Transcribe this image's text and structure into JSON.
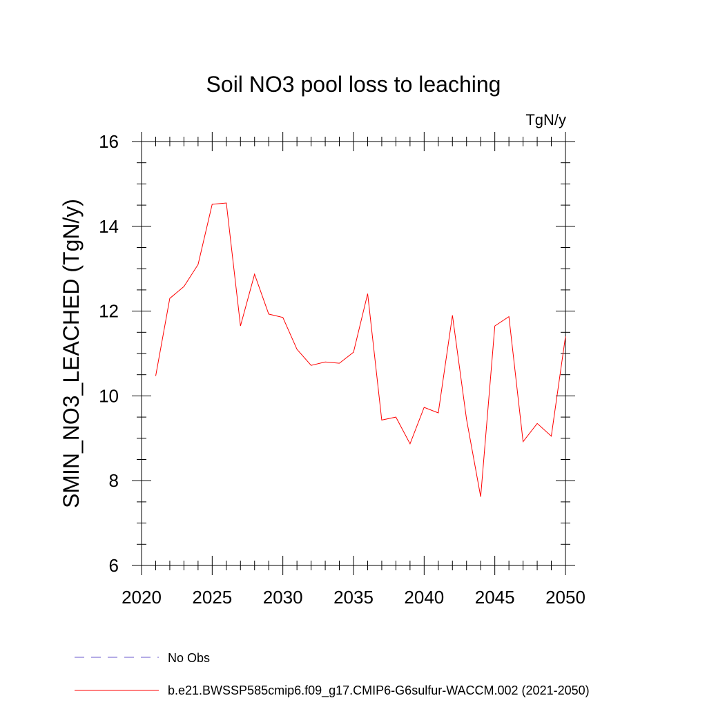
{
  "chart_data": {
    "type": "line",
    "title": "Soil NO3 pool loss to leaching",
    "units": "TgN/y",
    "ylabel": "SMIN_NO3_LEACHED  (TgN/y)",
    "xlabel": "",
    "xlim": [
      2020,
      2050
    ],
    "ylim": [
      6,
      16
    ],
    "x_ticks": [
      "2020",
      "2025",
      "2030",
      "2035",
      "2040",
      "2045",
      "2050"
    ],
    "y_ticks": [
      "6",
      "8",
      "10",
      "12",
      "14",
      "16"
    ],
    "grid": false,
    "legend_position": "bottom",
    "legend": [
      {
        "label": "No Obs",
        "color": "#6a5acd",
        "style": "dashed"
      },
      {
        "label": "b.e21.BWSSP585cmip6.f09_g17.CMIP6-G6sulfur-WACCM.002 (2021-2050)",
        "color": "#ff0000",
        "style": "solid"
      }
    ],
    "series": [
      {
        "name": "b.e21.BWSSP585cmip6.f09_g17.CMIP6-G6sulfur-WACCM.002 (2021-2050)",
        "color": "#ff0000",
        "x": [
          2021,
          2022,
          2023,
          2024,
          2025,
          2026,
          2027,
          2028,
          2029,
          2030,
          2031,
          2032,
          2033,
          2034,
          2035,
          2036,
          2037,
          2038,
          2039,
          2040,
          2041,
          2042,
          2043,
          2044,
          2045,
          2046,
          2047,
          2048,
          2049,
          2050
        ],
        "values": [
          10.47,
          12.3,
          12.58,
          13.1,
          14.52,
          14.55,
          11.65,
          12.87,
          11.93,
          11.85,
          11.1,
          10.72,
          10.8,
          10.77,
          11.03,
          12.41,
          9.43,
          9.5,
          8.87,
          9.73,
          9.6,
          11.9,
          9.45,
          7.62,
          11.65,
          11.87,
          8.92,
          9.35,
          9.05,
          11.4
        ]
      }
    ]
  }
}
